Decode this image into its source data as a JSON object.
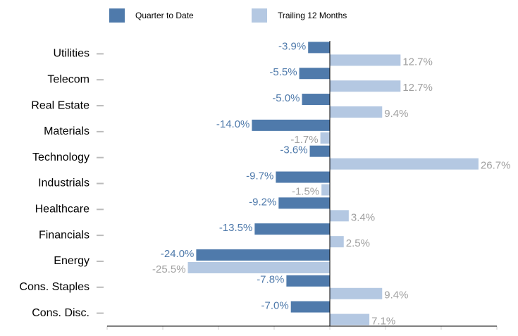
{
  "chart_data": {
    "type": "hbar",
    "categories": [
      "Utilities",
      "Telecom",
      "Real Estate",
      "Materials",
      "Technology",
      "Industrials",
      "Healthcare",
      "Financials",
      "Energy",
      "Cons. Staples",
      "Cons. Disc."
    ],
    "series": [
      {
        "name": "Quarter to Date",
        "color": "#4f7aab",
        "label_color": "#4f7aab",
        "values": [
          -3.9,
          -5.5,
          -5.0,
          -14.0,
          -3.6,
          -9.7,
          -9.2,
          -13.5,
          -24.0,
          -7.8,
          -7.0
        ],
        "value_labels": [
          "-3.9%",
          "-5.5%",
          "-5.0%",
          "-14.0%",
          "-3.6%",
          "-9.7%",
          "-9.2%",
          "-13.5%",
          "-24.0%",
          "-7.8%",
          "-7.0%"
        ]
      },
      {
        "name": "Trailing 12 Months",
        "color": "#b4c8e2",
        "label_color": "#a0a0a0",
        "values": [
          12.7,
          12.7,
          9.4,
          -1.7,
          26.7,
          -1.5,
          3.4,
          2.5,
          -25.5,
          9.4,
          7.1
        ],
        "value_labels": [
          "12.7%",
          "12.7%",
          "9.4%",
          "-1.7%",
          "26.7%",
          "-1.5%",
          "3.4%",
          "2.5%",
          "-25.5%",
          "9.4%",
          "7.1%"
        ]
      }
    ],
    "xlim": [
      -40,
      30
    ],
    "xticks": [
      -40,
      -30,
      -20,
      -10,
      0,
      10,
      20,
      30
    ]
  }
}
